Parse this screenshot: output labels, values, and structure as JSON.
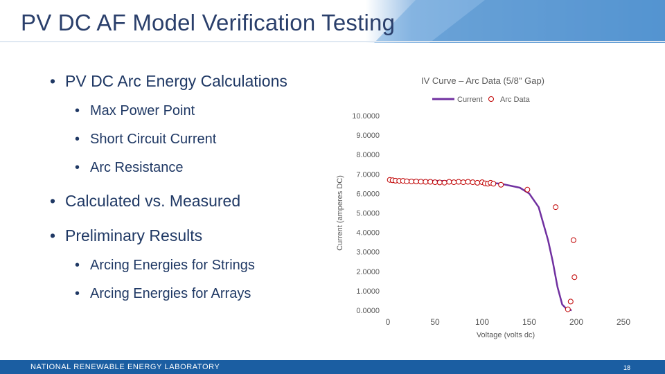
{
  "slide": {
    "title": "PV DC AF Model Verification Testing",
    "bullets": [
      {
        "level": 1,
        "text": "PV DC Arc Energy Calculations"
      },
      {
        "level": 2,
        "text": "Max Power Point"
      },
      {
        "level": 2,
        "text": "Short Circuit Current"
      },
      {
        "level": 2,
        "text": "Arc Resistance"
      },
      {
        "level": 1,
        "text": "Calculated vs. Measured"
      },
      {
        "level": 1,
        "text": "Preliminary Results"
      },
      {
        "level": 2,
        "text": "Arcing Energies for Strings"
      },
      {
        "level": 2,
        "text": "Arcing Energies for Arrays"
      }
    ],
    "footer": "NATIONAL RENEWABLE ENERGY LABORATORY",
    "page_number": "18",
    "bullet_glyph": "•"
  },
  "colors": {
    "title_band": "#5b9bd5",
    "footer_band": "#1b5ea2",
    "current_line": "#7030a0",
    "arc_data": "#c00000",
    "text": "#1f3864"
  },
  "chart_data": {
    "type": "scatter",
    "title": "IV Curve – Arc Data (5/8\" Gap)",
    "xlabel": "Voltage (volts dc)",
    "ylabel": "Current (amperes DC)",
    "xlim": [
      0,
      250
    ],
    "ylim": [
      0,
      10
    ],
    "xticks": [
      "0",
      "50",
      "100",
      "150",
      "200",
      "250"
    ],
    "yticks": [
      "0.0000",
      "1.0000",
      "2.0000",
      "3.0000",
      "4.0000",
      "5.0000",
      "6.0000",
      "7.0000",
      "8.0000",
      "9.0000",
      "10.0000"
    ],
    "legend_position": "top",
    "series": [
      {
        "name": "Current",
        "style": "line",
        "x": [
          0,
          20,
          40,
          60,
          80,
          100,
          120,
          140,
          150,
          160,
          170,
          175,
          180,
          185,
          190,
          195
        ],
        "y": [
          6.7,
          6.68,
          6.66,
          6.64,
          6.62,
          6.58,
          6.5,
          6.3,
          6.0,
          5.3,
          3.6,
          2.5,
          1.2,
          0.3,
          0.05,
          0.0
        ]
      },
      {
        "name": "Arc Data",
        "style": "markers",
        "x": [
          2,
          5,
          8,
          12,
          16,
          20,
          25,
          30,
          35,
          40,
          45,
          50,
          55,
          60,
          65,
          70,
          75,
          80,
          85,
          90,
          95,
          100,
          103,
          106,
          109,
          112,
          120,
          148,
          178,
          197,
          198,
          194,
          191
        ],
        "y": [
          6.7,
          6.68,
          6.66,
          6.65,
          6.65,
          6.63,
          6.62,
          6.62,
          6.61,
          6.6,
          6.6,
          6.58,
          6.57,
          6.56,
          6.6,
          6.58,
          6.6,
          6.58,
          6.6,
          6.58,
          6.55,
          6.58,
          6.52,
          6.5,
          6.55,
          6.5,
          6.45,
          6.2,
          5.3,
          3.6,
          1.7,
          0.45,
          0.05
        ]
      }
    ]
  }
}
